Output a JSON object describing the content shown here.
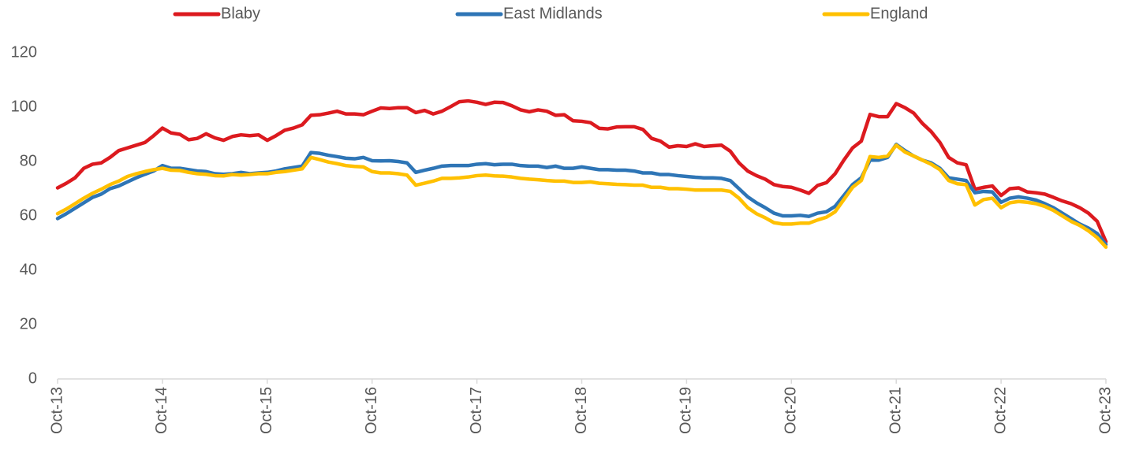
{
  "chart_data": {
    "type": "line",
    "categories": [
      "Oct-13",
      null,
      null,
      null,
      null,
      null,
      null,
      null,
      null,
      null,
      null,
      null,
      "Oct-14",
      null,
      null,
      null,
      null,
      null,
      null,
      null,
      null,
      null,
      null,
      null,
      "Oct-15",
      null,
      null,
      null,
      null,
      null,
      null,
      null,
      null,
      null,
      null,
      null,
      "Oct-16",
      null,
      null,
      null,
      null,
      null,
      null,
      null,
      null,
      null,
      null,
      null,
      "Oct-17",
      null,
      null,
      null,
      null,
      null,
      null,
      null,
      null,
      null,
      null,
      null,
      "Oct-18",
      null,
      null,
      null,
      null,
      null,
      null,
      null,
      null,
      null,
      null,
      null,
      "Oct-19",
      null,
      null,
      null,
      null,
      null,
      null,
      null,
      null,
      null,
      null,
      null,
      "Oct-20",
      null,
      null,
      null,
      null,
      null,
      null,
      null,
      null,
      null,
      null,
      null,
      "Oct-21",
      null,
      null,
      null,
      null,
      null,
      null,
      null,
      null,
      null,
      null,
      null,
      "Oct-22",
      null,
      null,
      null,
      null,
      null,
      null,
      null,
      null,
      null,
      null,
      null,
      "Oct-23"
    ],
    "series": [
      {
        "name": "Blaby",
        "color": "#dc1a1f",
        "values": [
          70.3,
          72,
          74,
          77.5,
          79,
          79.5,
          81.5,
          84,
          85,
          86,
          87,
          89.5,
          92.3,
          90.5,
          90,
          88,
          88.5,
          90.2,
          88.7,
          87.8,
          89.2,
          89.8,
          89.5,
          89.8,
          87.8,
          89.5,
          91.5,
          92.3,
          93.5,
          97,
          97.2,
          97.8,
          98.5,
          97.5,
          97.5,
          97.2,
          98.5,
          99.7,
          99.5,
          99.8,
          99.8,
          98,
          98.8,
          97.5,
          98.5,
          100.2,
          102,
          102.3,
          101.8,
          101,
          101.8,
          101.7,
          100.5,
          99,
          98.3,
          99,
          98.5,
          97,
          97.2,
          95,
          94.8,
          94.3,
          92.2,
          92,
          92.7,
          92.8,
          92.8,
          91.8,
          88.5,
          87.5,
          85.3,
          85.8,
          85.5,
          86.5,
          85.5,
          85.8,
          86,
          83.8,
          79.5,
          76.5,
          74.8,
          73.5,
          71.5,
          70.8,
          70.5,
          69.5,
          68.3,
          71.2,
          72.2,
          75.5,
          80.5,
          85,
          87.5,
          97.3,
          96.5,
          96.5,
          101.3,
          99.8,
          97.8,
          94,
          91,
          87,
          81.5,
          79.5,
          78.8,
          69.8,
          70.5,
          71,
          67.5,
          70,
          70.3,
          68.8,
          68.5,
          68,
          66.8,
          65.5,
          64.5,
          63,
          61,
          58,
          50.5
        ]
      },
      {
        "name": "East Midlands",
        "color": "#2e75b6",
        "values": [
          59,
          60.8,
          62.8,
          64.8,
          66.8,
          68,
          70,
          71,
          72.5,
          74,
          75.3,
          76.5,
          78.5,
          77.5,
          77.5,
          77,
          76.5,
          76.3,
          75.5,
          75.3,
          75.5,
          76,
          75.5,
          75.8,
          76,
          76.5,
          77.3,
          77.8,
          78.3,
          83.3,
          83,
          82.3,
          81.8,
          81.2,
          81,
          81.5,
          80.3,
          80.2,
          80.3,
          80,
          79.5,
          76,
          76.8,
          77.5,
          78.3,
          78.5,
          78.5,
          78.5,
          79,
          79.2,
          78.8,
          79,
          79,
          78.5,
          78.3,
          78.3,
          77.8,
          78.3,
          77.5,
          77.5,
          78,
          77.5,
          77,
          77,
          76.8,
          76.8,
          76.5,
          75.8,
          75.8,
          75.2,
          75.2,
          74.8,
          74.5,
          74.2,
          74,
          74,
          73.8,
          73,
          70,
          67,
          64.8,
          63,
          61,
          60,
          60,
          60.2,
          59.8,
          61,
          61.5,
          63.5,
          67.5,
          71.5,
          74,
          80.5,
          80.5,
          81.5,
          86.3,
          84,
          82,
          80.5,
          79.5,
          77.5,
          74,
          73.5,
          73,
          68.5,
          69,
          68.8,
          65,
          66.5,
          67,
          66.5,
          65.8,
          64.5,
          63,
          61,
          59,
          57,
          55.5,
          53.5,
          49.5
        ]
      },
      {
        "name": "England",
        "color": "#ffc000",
        "values": [
          60.8,
          62.5,
          64.5,
          66.5,
          68.3,
          69.8,
          71.5,
          72.8,
          74.5,
          75.5,
          76.3,
          77,
          77.5,
          76.8,
          76.7,
          76,
          75.5,
          75.3,
          74.8,
          74.7,
          75.2,
          75,
          75.2,
          75.5,
          75.5,
          76,
          76.3,
          76.8,
          77.3,
          81.5,
          80.7,
          79.8,
          79.2,
          78.5,
          78.2,
          78,
          76.3,
          75.8,
          75.8,
          75.5,
          75,
          71.3,
          72,
          72.8,
          73.8,
          73.8,
          74,
          74.3,
          74.8,
          75,
          74.7,
          74.6,
          74.3,
          73.8,
          73.5,
          73.3,
          73,
          72.8,
          72.8,
          72.3,
          72.3,
          72.5,
          72,
          71.8,
          71.6,
          71.5,
          71.3,
          71.3,
          70.5,
          70.5,
          70,
          70,
          69.8,
          69.5,
          69.5,
          69.5,
          69.5,
          69,
          66.5,
          63,
          60.8,
          59.3,
          57.5,
          57,
          57,
          57.3,
          57.3,
          58.5,
          59.5,
          61.5,
          66,
          70.5,
          73,
          81.8,
          81.5,
          82,
          86,
          83.5,
          82,
          80.5,
          79,
          77,
          73,
          71.8,
          71.5,
          64,
          66,
          66.5,
          63,
          64.8,
          65.3,
          65,
          64.5,
          63.5,
          62,
          60,
          58,
          56.5,
          54.5,
          52,
          48.5
        ]
      }
    ],
    "ylim": [
      0,
      120
    ],
    "yticks": [
      0,
      20,
      40,
      60,
      80,
      100,
      120
    ],
    "grid": false,
    "legend": "top"
  }
}
